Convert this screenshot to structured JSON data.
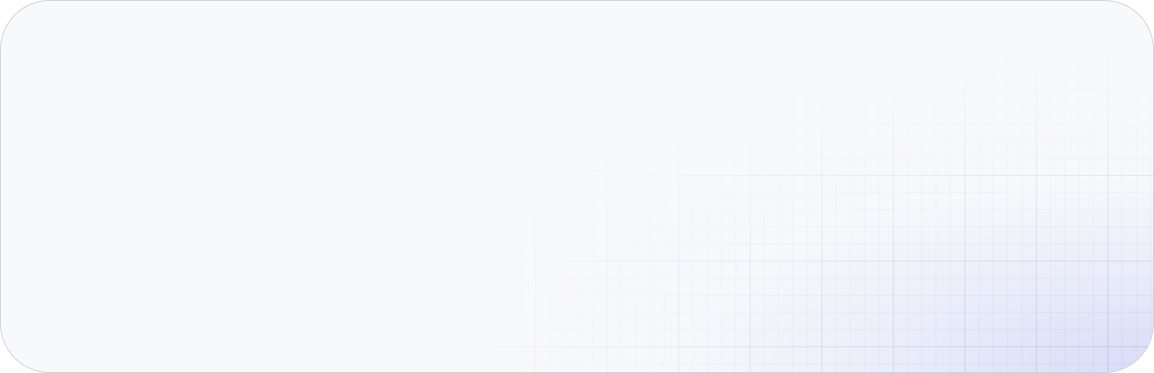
{
  "card": {
    "colors": {
      "background": "#f8f9fb",
      "border": "#cfd1d8",
      "glow": "#d6dbf7",
      "grid_line": "#969ec8"
    }
  }
}
